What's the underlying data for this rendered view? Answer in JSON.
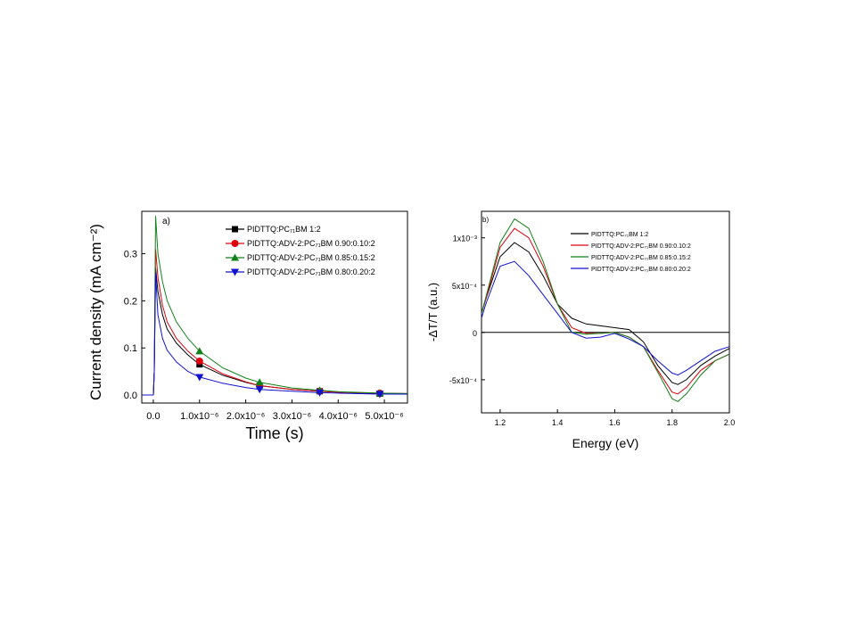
{
  "chart_data": [
    {
      "type": "line",
      "panel_label": "a)",
      "xlabel": "Time (s)",
      "ylabel": "Current density (mA cm⁻²)",
      "x_unit_note": "x values in 1e-6 s",
      "xlim": [
        -0.25,
        5.5
      ],
      "ylim": [
        -0.017,
        0.39
      ],
      "xticks": [
        {
          "v": 0,
          "label": "0.0"
        },
        {
          "v": 1,
          "label": "1.0x10⁻⁶"
        },
        {
          "v": 2,
          "label": "2.0x10⁻⁶"
        },
        {
          "v": 3,
          "label": "3.0x10⁻⁶"
        },
        {
          "v": 4,
          "label": "4.0x10⁻⁶"
        },
        {
          "v": 5,
          "label": "5.0x10⁻⁶"
        }
      ],
      "yticks": [
        {
          "v": 0,
          "label": "0.0"
        },
        {
          "v": 0.1,
          "label": "0.1"
        },
        {
          "v": 0.2,
          "label": "0.2"
        },
        {
          "v": 0.3,
          "label": "0.3"
        }
      ],
      "legend_position": "top-right",
      "series": [
        {
          "name": "PIDTTQ:PC₇₁BM 1:2",
          "color": "#000000",
          "marker": "square",
          "x": [
            -0.25,
            0,
            0.02,
            0.05,
            0.1,
            0.2,
            0.3,
            0.5,
            0.75,
            1,
            1.5,
            2,
            2.3,
            3,
            3.6,
            4,
            4.9,
            5.5
          ],
          "y": [
            0,
            0,
            0.05,
            0.27,
            0.22,
            0.17,
            0.14,
            0.11,
            0.085,
            0.065,
            0.042,
            0.027,
            0.02,
            0.012,
            0.008,
            0.006,
            0.003,
            0.002
          ],
          "markers_x": [
            1.0,
            2.3,
            3.6,
            4.9
          ]
        },
        {
          "name": "PIDTTQ:ADV-2:PC₇₁BM 0.90:0.10:2",
          "color": "#e0000d",
          "marker": "circle",
          "x": [
            -0.25,
            0,
            0.02,
            0.05,
            0.1,
            0.2,
            0.3,
            0.5,
            0.75,
            1,
            1.5,
            2,
            2.3,
            3,
            3.6,
            4,
            4.9,
            5.5
          ],
          "y": [
            0,
            0,
            0.05,
            0.31,
            0.25,
            0.19,
            0.155,
            0.12,
            0.093,
            0.072,
            0.045,
            0.028,
            0.02,
            0.012,
            0.008,
            0.006,
            0.004,
            0.003
          ],
          "markers_x": [
            1.0,
            2.3,
            3.6,
            4.9
          ]
        },
        {
          "name": "PIDTTQ:ADV-2:PC₇₁BM 0.85:0.15:2",
          "color": "#13801a",
          "marker": "triangle-up",
          "x": [
            -0.25,
            0,
            0.02,
            0.05,
            0.1,
            0.2,
            0.3,
            0.5,
            0.75,
            1,
            1.5,
            2,
            2.3,
            3,
            3.6,
            4,
            4.9,
            5.5
          ],
          "y": [
            0,
            0,
            0.05,
            0.38,
            0.3,
            0.24,
            0.2,
            0.155,
            0.12,
            0.093,
            0.058,
            0.036,
            0.027,
            0.015,
            0.01,
            0.007,
            0.004,
            0.003
          ],
          "markers_x": [
            1.0,
            2.3,
            3.6,
            4.9
          ]
        },
        {
          "name": "PIDTTQ:ADV-2:PC₇₁BM 0.80:0.20:2",
          "color": "#1010d0",
          "marker": "triangle-down",
          "x": [
            -0.25,
            0,
            0.02,
            0.05,
            0.1,
            0.2,
            0.3,
            0.5,
            0.75,
            1,
            1.5,
            2,
            2.3,
            3,
            3.6,
            4,
            4.9,
            5.5
          ],
          "y": [
            0,
            0,
            0.05,
            0.26,
            0.17,
            0.12,
            0.095,
            0.07,
            0.05,
            0.038,
            0.025,
            0.016,
            0.012,
            0.008,
            0.005,
            0.004,
            0.002,
            0.002
          ],
          "markers_x": [
            1.0,
            2.3,
            3.6,
            4.9
          ]
        }
      ]
    },
    {
      "type": "line",
      "panel_label": "b)",
      "xlabel": "Energy (eV)",
      "ylabel": "-ΔT/T (a.u.)",
      "y_unit_note": "y values in 1e-4",
      "xlim": [
        1.135,
        2.0
      ],
      "ylim": [
        -8.5,
        12.8
      ],
      "xticks": [
        {
          "v": 1.2,
          "label": "1.2"
        },
        {
          "v": 1.4,
          "label": "1.4"
        },
        {
          "v": 1.6,
          "label": "1.6"
        },
        {
          "v": 1.8,
          "label": "1.8"
        },
        {
          "v": 2.0,
          "label": "2.0"
        }
      ],
      "yticks": [
        {
          "v": -5,
          "label": "-5x10⁻⁴"
        },
        {
          "v": 0,
          "label": "0"
        },
        {
          "v": 5,
          "label": "5x10⁻⁴"
        },
        {
          "v": 10,
          "label": "1x10⁻³"
        }
      ],
      "zero_line": true,
      "legend_position": "top-right",
      "x": [
        1.135,
        1.15,
        1.2,
        1.25,
        1.3,
        1.35,
        1.4,
        1.45,
        1.5,
        1.55,
        1.6,
        1.65,
        1.7,
        1.75,
        1.8,
        1.82,
        1.85,
        1.9,
        1.95,
        2.0
      ],
      "series": [
        {
          "name": "PIDTTQ:PC₇₁BM 1:2",
          "color": "#000000",
          "y": [
            2,
            3.5,
            8,
            9.5,
            8.5,
            6,
            3,
            1.5,
            0.9,
            0.7,
            0.5,
            0.3,
            -1,
            -3.5,
            -5.3,
            -5.5,
            -5,
            -3.5,
            -2.5,
            -1.7
          ]
        },
        {
          "name": "PIDTTQ:ADV-2:PC₇₁BM 0.90:0.10:2",
          "color": "#e0000d",
          "y": [
            2,
            3.5,
            9,
            11,
            10,
            7,
            3,
            0.5,
            -0.1,
            -0.1,
            0,
            -0.5,
            -1.5,
            -4,
            -6.3,
            -6.5,
            -5.8,
            -4,
            -3,
            -2.3
          ]
        },
        {
          "name": "PIDTTQ:ADV-2:PC₇₁BM 0.85:0.15:2",
          "color": "#13801a",
          "y": [
            2,
            3.7,
            9.5,
            12,
            11,
            7.5,
            3,
            0,
            -0.2,
            -0.1,
            0,
            -0.5,
            -1.5,
            -4.2,
            -7,
            -7.3,
            -6.5,
            -4.5,
            -3,
            -2.3
          ]
        },
        {
          "name": "PIDTTQ:ADV-2:PC₇₁BM 0.80:0.20:2",
          "color": "#1010d0",
          "y": [
            1.5,
            3,
            7,
            7.5,
            6,
            4,
            2,
            0,
            -0.6,
            -0.5,
            -0.1,
            -0.7,
            -1.5,
            -3,
            -4.3,
            -4.5,
            -4,
            -3,
            -2,
            -1.5
          ]
        }
      ]
    }
  ]
}
